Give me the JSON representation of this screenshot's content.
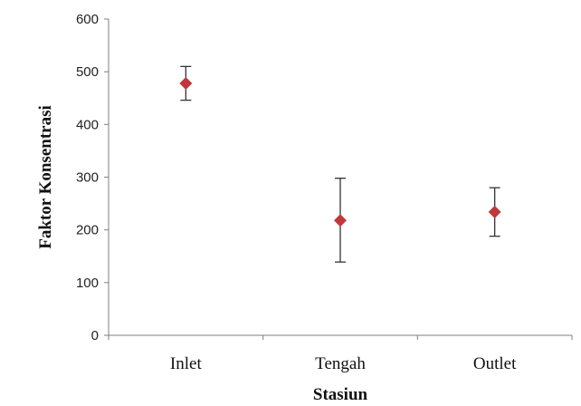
{
  "chart_data": {
    "type": "scatter",
    "title": "",
    "xlabel": "Stasiun",
    "ylabel": "Faktor Konsentrasi",
    "categories": [
      "Inlet",
      "Tengah",
      "Outlet"
    ],
    "ylim": [
      0,
      600
    ],
    "yticks": [
      "0",
      "100",
      "200",
      "300",
      "400",
      "500",
      "600"
    ],
    "grid": false,
    "legend": "none",
    "marker": "diamond",
    "marker_color": "#c0383a",
    "error_bar_color": "#333333",
    "series": [
      {
        "values": [
          478,
          218,
          234
        ],
        "error_low": [
          446,
          139,
          188
        ],
        "error_high": [
          510,
          298,
          280
        ]
      }
    ]
  }
}
